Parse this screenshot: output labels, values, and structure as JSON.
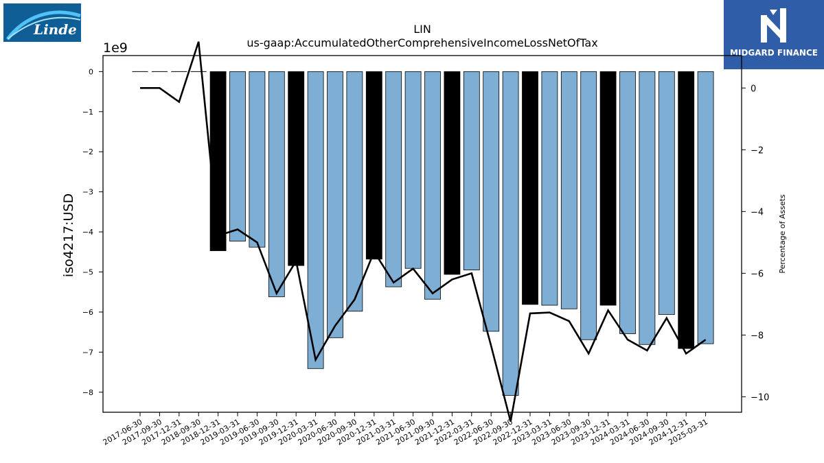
{
  "logos": {
    "left": {
      "text": "Linde",
      "color": "#0f5f96"
    },
    "right": {
      "text": "MIDGARD FINANCE",
      "color": "#2f5da8"
    }
  },
  "chart_data": {
    "type": "bar",
    "title": "LIN",
    "subtitle": "us-gaap:AccumulatedOtherComprehensiveIncomeLossNetOfTax",
    "ylabel": "iso4217:USD",
    "y_exponent": "1e9",
    "y2label": "Percentage of Assets",
    "ylim": [
      -8.5,
      0.4
    ],
    "y2lim": [
      -10.5,
      1.05
    ],
    "yticks": [
      0,
      -1,
      -2,
      -3,
      -4,
      -5,
      -6,
      -7,
      -8
    ],
    "y2ticks": [
      0,
      -2,
      -4,
      -6,
      -8,
      -10
    ],
    "categories": [
      "2017-06-30",
      "2017-09-30",
      "2017-12-31",
      "2018-09-30",
      "2018-12-31",
      "2019-03-31",
      "2019-06-30",
      "2019-09-30",
      "2019-12-31",
      "2020-03-31",
      "2020-06-30",
      "2020-09-30",
      "2020-12-31",
      "2021-03-31",
      "2021-06-30",
      "2021-09-30",
      "2021-12-31",
      "2022-03-31",
      "2022-06-30",
      "2022-09-30",
      "2022-12-31",
      "2023-03-31",
      "2023-06-30",
      "2023-09-30",
      "2023-12-31",
      "2024-03-31",
      "2024-06-30",
      "2024-09-30",
      "2024-12-31",
      "2025-03-31"
    ],
    "bar_values": [
      0,
      0,
      0,
      0,
      -4.47,
      -4.23,
      -4.38,
      -5.62,
      -4.84,
      -7.41,
      -6.64,
      -5.98,
      -4.68,
      -5.37,
      -4.91,
      -5.68,
      -5.06,
      -4.95,
      -6.48,
      -8.08,
      -5.81,
      -5.83,
      -5.92,
      -6.69,
      -5.83,
      -6.54,
      -6.81,
      -6.06,
      -6.91,
      -6.79
    ],
    "bar_colors": [
      "#7eaed3",
      "#7eaed3",
      "#7eaed3",
      "#7eaed3",
      "#000000",
      "#7eaed3",
      "#7eaed3",
      "#7eaed3",
      "#000000",
      "#7eaed3",
      "#7eaed3",
      "#7eaed3",
      "#000000",
      "#7eaed3",
      "#7eaed3",
      "#7eaed3",
      "#000000",
      "#7eaed3",
      "#7eaed3",
      "#7eaed3",
      "#000000",
      "#7eaed3",
      "#7eaed3",
      "#7eaed3",
      "#000000",
      "#7eaed3",
      "#7eaed3",
      "#7eaed3",
      "#000000",
      "#7eaed3"
    ],
    "line_values": [
      0.0,
      0.0,
      -0.45,
      1.5,
      -4.78,
      -4.58,
      -5.0,
      -6.65,
      -5.6,
      -8.8,
      -7.7,
      -6.85,
      -5.3,
      -6.3,
      -5.85,
      -6.65,
      -6.2,
      -6.0,
      -8.35,
      -10.8,
      -7.3,
      -7.27,
      -7.55,
      -8.6,
      -7.2,
      -8.15,
      -8.5,
      -7.45,
      -8.6,
      -8.15
    ],
    "line_color": "#000000",
    "grid": false
  }
}
